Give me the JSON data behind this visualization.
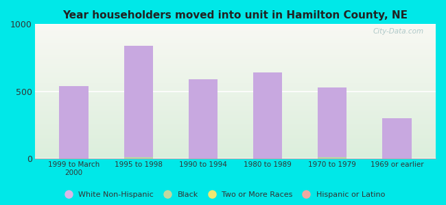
{
  "title": "Year householders moved into unit in Hamilton County, NE",
  "categories": [
    "1999 to March\n2000",
    "1995 to 1998",
    "1990 to 1994",
    "1980 to 1989",
    "1970 to 1979",
    "1969 or earlier"
  ],
  "white_non_hispanic": [
    540,
    840,
    590,
    640,
    530,
    300
  ],
  "black": [
    0,
    10,
    0,
    0,
    10,
    0
  ],
  "two_or_more": [
    0,
    0,
    0,
    0,
    0,
    0
  ],
  "hispanic": [
    0,
    0,
    0,
    0,
    0,
    0
  ],
  "bar_color_white": "#c8a8e0",
  "bar_color_black": "#b8d8a8",
  "bar_color_two": "#f0e870",
  "bar_color_hispanic": "#f0a898",
  "ylim": [
    0,
    1000
  ],
  "yticks": [
    0,
    500,
    1000
  ],
  "background_outer": "#00e8e8",
  "background_plot_top": "#f8f8f0",
  "background_plot_bottom": "#ddeedd",
  "watermark": "City-Data.com",
  "legend_items": [
    "White Non-Hispanic",
    "Black",
    "Two or More Races",
    "Hispanic or Latino"
  ],
  "legend_colors": [
    "#d8b8e8",
    "#c0d8a0",
    "#f0e870",
    "#f0a8a0"
  ]
}
